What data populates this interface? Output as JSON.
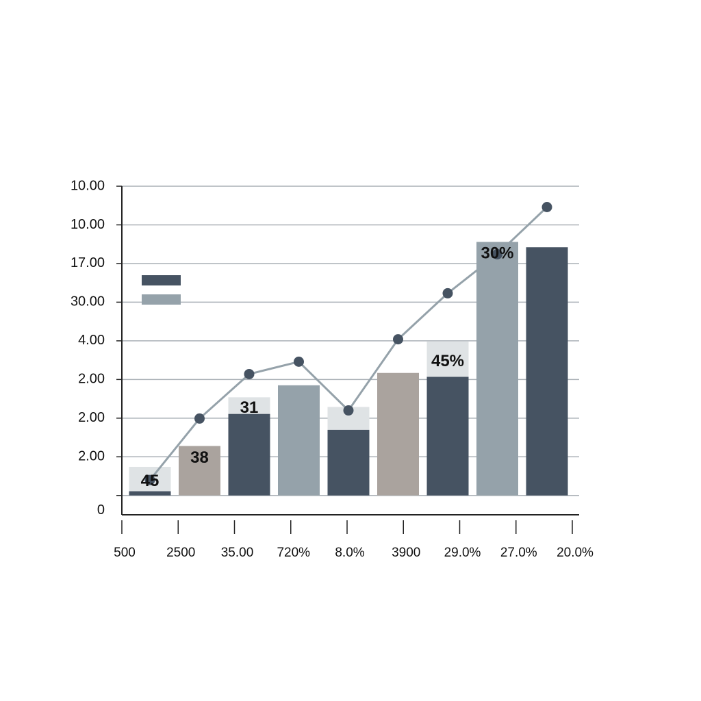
{
  "chart_data": {
    "type": "bar",
    "categories": [
      "500",
      "2500",
      "35.00",
      "720%",
      "8.0%",
      "3900",
      "29.0%",
      "27.0%",
      "20.0%"
    ],
    "series": [
      {
        "color": "#465362",
        "point_colors": [
          "#465362",
          "#aaa39e",
          "#465362",
          "#95a2aa",
          "#465362",
          "#aaa39e",
          "#465362",
          "#95a2aa",
          "#465362"
        ],
        "values": [
          0.11,
          1.28,
          2.11,
          2.85,
          1.7,
          3.17,
          3.07,
          6.56,
          6.42
        ]
      },
      {
        "color": "#dfe3e5",
        "stacked": true,
        "values": [
          0.63,
          null,
          0.43,
          null,
          0.59,
          null,
          0.92,
          null,
          null
        ]
      },
      {
        "type": "line",
        "color": "#95a2aa",
        "marker_color": "#465362",
        "values": [
          0.4,
          1.99,
          3.14,
          3.46,
          2.2,
          4.04,
          5.23,
          6.24,
          7.46
        ]
      }
    ],
    "annotations": [
      {
        "text": "45",
        "category": 0
      },
      {
        "text": "38",
        "category": 1
      },
      {
        "text": "31",
        "category": 2
      },
      {
        "text": "45%",
        "category": 6
      },
      {
        "text": "30%",
        "category": 7
      }
    ],
    "legend_colors": [
      "#465362",
      "#95a2aa"
    ],
    "ylim": [
      -0.5,
      8
    ],
    "yticks": [
      0,
      {
        "value": 1,
        "label": "2.00"
      },
      {
        "value": 2,
        "label": "2.00"
      },
      {
        "value": 3,
        "label": "2.00"
      },
      {
        "value": 4,
        "label": "4.00"
      },
      {
        "value": 5,
        "label": "30.00"
      },
      {
        "value": 6,
        "label": "17.00"
      },
      {
        "value": 7,
        "label": "10.00"
      },
      {
        "value": 8,
        "label": "10.00"
      }
    ],
    "grid": true
  }
}
